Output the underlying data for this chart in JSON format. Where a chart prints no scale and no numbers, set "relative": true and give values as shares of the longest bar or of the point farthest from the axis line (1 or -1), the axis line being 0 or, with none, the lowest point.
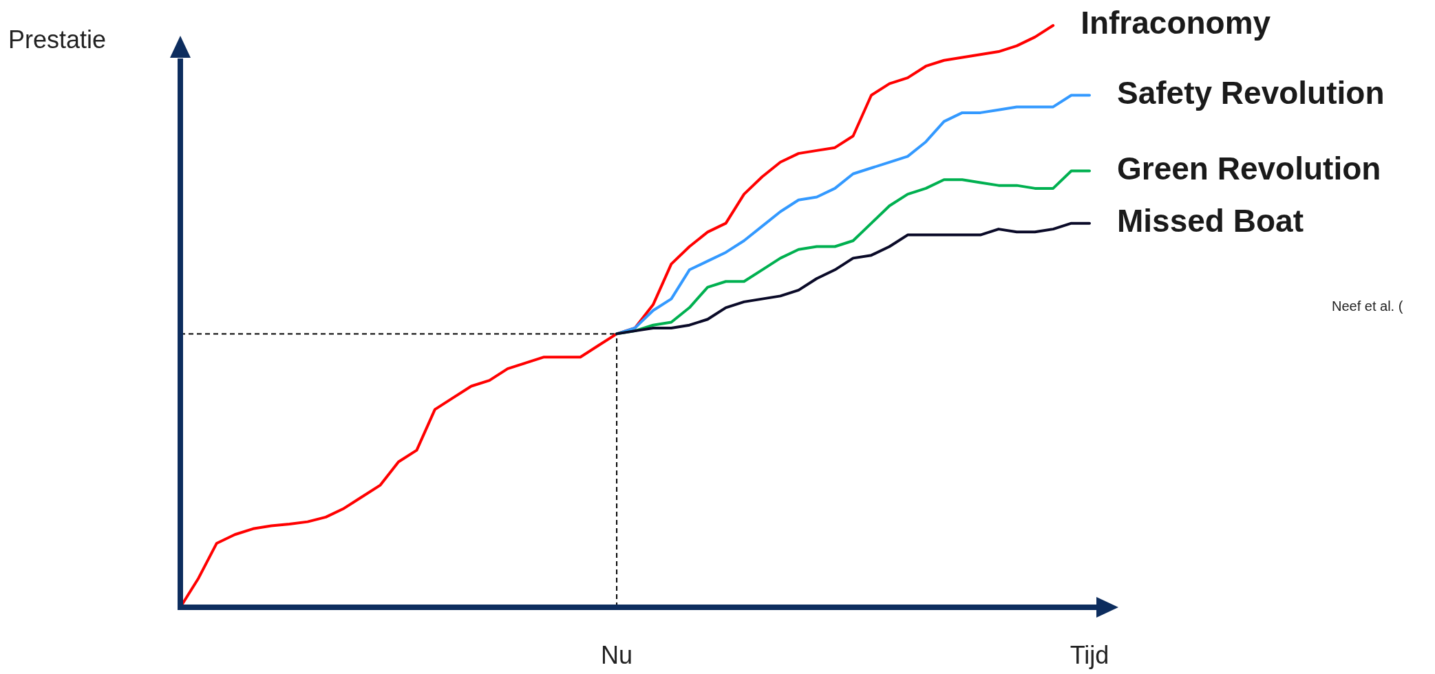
{
  "chart_data": {
    "type": "line",
    "relative": true,
    "ylabel": "Prestatie",
    "categories": [
      null,
      null,
      null,
      null,
      null,
      null,
      null,
      null,
      null,
      null,
      null,
      null,
      null,
      null,
      null,
      null,
      null,
      null,
      null,
      null,
      null,
      null,
      null,
      null,
      "Nu",
      null,
      null,
      null,
      null,
      null,
      null,
      null,
      null,
      null,
      null,
      null,
      null,
      null,
      null,
      null,
      null,
      null,
      null,
      null,
      null,
      null,
      null,
      null,
      null,
      null,
      "Tijd"
    ],
    "line_style": "solid",
    "ref_lines": [
      {
        "axis": "x",
        "value": "Nu",
        "color": "#000000",
        "line_style": "dashed"
      },
      {
        "axis": "y",
        "value": 0.47,
        "color": "#000000",
        "line_style": "dashed"
      }
    ],
    "annotations": [
      "Neef et al. ("
    ],
    "series": [
      {
        "name": "Infraconomy",
        "color": "#ff0000",
        "values": [
          0.0,
          0.05,
          0.11,
          0.125,
          0.135,
          0.14,
          0.143,
          0.147,
          0.155,
          0.17,
          0.19,
          0.21,
          0.25,
          0.27,
          0.34,
          0.36,
          0.38,
          0.39,
          0.41,
          0.42,
          0.43,
          0.43,
          0.43,
          0.45,
          0.47,
          0.48,
          0.52,
          0.59,
          0.62,
          0.645,
          0.66,
          0.71,
          0.74,
          0.765,
          0.78,
          0.785,
          0.79,
          0.81,
          0.88,
          0.9,
          0.91,
          0.93,
          0.94,
          0.945,
          0.95,
          0.955,
          0.965,
          0.98,
          1.0,
          null,
          null
        ]
      },
      {
        "name": "Safety Revolution",
        "color": "#3399ff",
        "values": [
          null,
          null,
          null,
          null,
          null,
          null,
          null,
          null,
          null,
          null,
          null,
          null,
          null,
          null,
          null,
          null,
          null,
          null,
          null,
          null,
          null,
          null,
          null,
          null,
          0.47,
          0.48,
          0.51,
          0.53,
          0.58,
          0.595,
          0.61,
          0.63,
          0.655,
          0.68,
          0.7,
          0.705,
          0.72,
          0.745,
          0.755,
          0.765,
          0.775,
          0.8,
          0.835,
          0.85,
          0.85,
          0.855,
          0.86,
          0.86,
          0.86,
          0.88,
          0.88
        ]
      },
      {
        "name": "Green Revolution",
        "color": "#00b050",
        "values": [
          null,
          null,
          null,
          null,
          null,
          null,
          null,
          null,
          null,
          null,
          null,
          null,
          null,
          null,
          null,
          null,
          null,
          null,
          null,
          null,
          null,
          null,
          null,
          null,
          0.47,
          0.475,
          0.485,
          0.49,
          0.515,
          0.55,
          0.56,
          0.56,
          0.58,
          0.6,
          0.615,
          0.62,
          0.62,
          0.63,
          0.66,
          0.69,
          0.71,
          0.72,
          0.735,
          0.735,
          0.73,
          0.725,
          0.725,
          0.72,
          0.72,
          0.75,
          0.75
        ]
      },
      {
        "name": "Missed Boat",
        "color": "#0a0a28",
        "values": [
          null,
          null,
          null,
          null,
          null,
          null,
          null,
          null,
          null,
          null,
          null,
          null,
          null,
          null,
          null,
          null,
          null,
          null,
          null,
          null,
          null,
          null,
          null,
          null,
          0.47,
          0.475,
          0.48,
          0.48,
          0.485,
          0.495,
          0.515,
          0.525,
          0.53,
          0.535,
          0.545,
          0.565,
          0.58,
          0.6,
          0.605,
          0.62,
          0.64,
          0.64,
          0.64,
          0.64,
          0.64,
          0.65,
          0.645,
          0.645,
          0.65,
          0.66,
          0.66
        ]
      }
    ]
  }
}
